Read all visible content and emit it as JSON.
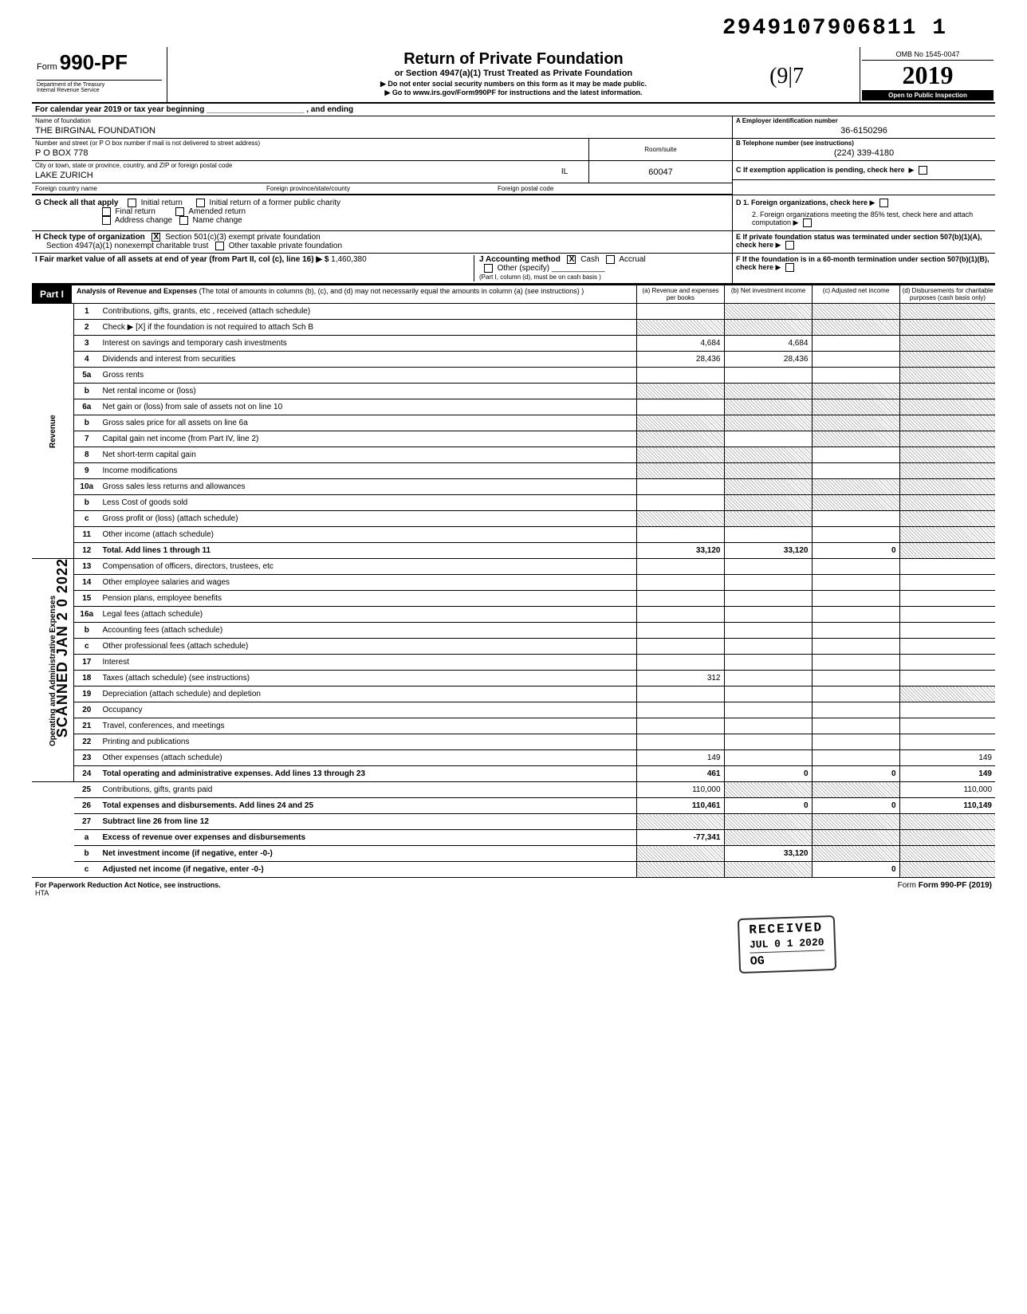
{
  "top_number": "2949107906811 1",
  "handwritten": "(9|7",
  "form": {
    "prefix": "Form",
    "number": "990-PF",
    "dept": "Department of the Treasury",
    "irs": "Internal Revenue Service"
  },
  "title": {
    "main": "Return of Private Foundation",
    "sub": "or Section 4947(a)(1) Trust Treated as Private Foundation",
    "line1": "Do not enter social security numbers on this form as it may be made public.",
    "line2": "Go to www.irs.gov/Form990PF for instructions and the latest information."
  },
  "yearbox": {
    "omb": "OMB No 1545-0047",
    "year": "2019",
    "inspection": "Open to Public Inspection"
  },
  "calendar": "For calendar year 2019 or tax year beginning ______________________ , and ending",
  "foundation": {
    "name_label": "Name of foundation",
    "name": "THE BIRGINAL FOUNDATION",
    "ein_label": "A  Employer identification number",
    "ein": "36-6150296",
    "addr_label": "Number and street (or P O box number if mail is not delivered to street address)",
    "room_label": "Room/suite",
    "addr": "P O BOX 778",
    "phone_label": "B  Telephone number (see instructions)",
    "phone": "(224) 339-4180",
    "city_label": "City or town, state or province, country, and ZIP or foreign postal code",
    "city": "LAKE ZURICH",
    "state": "IL",
    "zip": "60047",
    "c_label": "C  If exemption application is pending, check here",
    "foreign_country": "Foreign country name",
    "foreign_province": "Foreign province/state/county",
    "foreign_postal": "Foreign postal code"
  },
  "section_g": {
    "label": "G   Check all that apply",
    "initial": "Initial return",
    "final": "Final return",
    "address": "Address change",
    "initial_former": "Initial return of a former public charity",
    "amended": "Amended return",
    "name_change": "Name change",
    "d1": "D  1. Foreign organizations, check here",
    "d2": "2. Foreign organizations meeting the 85% test, check here and attach computation"
  },
  "section_h": {
    "label": "H   Check type of organization",
    "opt1": "Section 501(c)(3) exempt private foundation",
    "opt2": "Section 4947(a)(1) nonexempt charitable trust",
    "opt3": "Other taxable private foundation",
    "e_label": "E  If private foundation status was terminated under section 507(b)(1)(A), check here"
  },
  "section_i": {
    "label": "I     Fair market value of all assets at end of year (from Part II, col (c), line 16) ▶ $",
    "value": "1,460,380",
    "j_label": "J    Accounting method",
    "cash": "Cash",
    "accrual": "Accrual",
    "other": "Other (specify)",
    "note": "(Part I, column (d), must be on cash basis )",
    "f_label": "F  If the foundation is in a 60-month termination under section 507(b)(1)(B), check here"
  },
  "part1": {
    "label": "Part I",
    "title": "Analysis of Revenue and Expenses",
    "note": "(The total of amounts in columns (b), (c), and (d) may not necessarily equal the amounts in column (a) (see instructions) )",
    "col_a": "(a) Revenue and expenses per books",
    "col_b": "(b) Net investment income",
    "col_c": "(c) Adjusted net income",
    "col_d": "(d) Disbursements for charitable purposes (cash basis only)"
  },
  "side_labels": {
    "scanned": "SCANNED JAN 2 0 2022",
    "revenue": "Revenue",
    "expenses": "Operating and Administrative Expenses"
  },
  "rows": [
    {
      "n": "1",
      "desc": "Contributions, gifts, grants, etc , received (attach schedule)",
      "a": "",
      "b_sh": true,
      "c_sh": true,
      "d_sh": true
    },
    {
      "n": "2",
      "desc": "Check ▶ [X] if the foundation is not required to attach Sch B",
      "a_sh": true,
      "b_sh": true,
      "c_sh": true,
      "d_sh": true
    },
    {
      "n": "3",
      "desc": "Interest on savings and temporary cash investments",
      "a": "4,684",
      "b": "4,684",
      "c": "",
      "d_sh": true
    },
    {
      "n": "4",
      "desc": "Dividends and interest from securities",
      "a": "28,436",
      "b": "28,436",
      "c": "",
      "d_sh": true
    },
    {
      "n": "5a",
      "desc": "Gross rents",
      "a": "",
      "b": "",
      "c": "",
      "d_sh": true
    },
    {
      "n": "b",
      "desc": "Net rental income or (loss)",
      "a_sh": true,
      "b_sh": true,
      "c_sh": true,
      "d_sh": true
    },
    {
      "n": "6a",
      "desc": "Net gain or (loss) from sale of assets not on line 10",
      "a": "",
      "b_sh": true,
      "c_sh": true,
      "d_sh": true
    },
    {
      "n": "b",
      "desc": "Gross sales price for all assets on line 6a",
      "a_sh": true,
      "b_sh": true,
      "c_sh": true,
      "d_sh": true
    },
    {
      "n": "7",
      "desc": "Capital gain net income (from Part IV, line 2)",
      "a_sh": true,
      "b": "",
      "c_sh": true,
      "d_sh": true
    },
    {
      "n": "8",
      "desc": "Net short-term capital gain",
      "a_sh": true,
      "b_sh": true,
      "c": "",
      "d_sh": true
    },
    {
      "n": "9",
      "desc": "Income modifications",
      "a_sh": true,
      "b_sh": true,
      "c": "",
      "d_sh": true
    },
    {
      "n": "10a",
      "desc": "Gross sales less returns and allowances",
      "a": "",
      "b_sh": true,
      "c_sh": true,
      "d_sh": true
    },
    {
      "n": "b",
      "desc": "Less Cost of goods sold",
      "a": "",
      "b_sh": true,
      "c_sh": true,
      "d_sh": true
    },
    {
      "n": "c",
      "desc": "Gross profit or (loss) (attach schedule)",
      "a_sh": true,
      "b_sh": true,
      "c": "",
      "d_sh": true
    },
    {
      "n": "11",
      "desc": "Other income (attach schedule)",
      "a": "",
      "b": "",
      "c": "",
      "d_sh": true
    },
    {
      "n": "12",
      "desc": "Total. Add lines 1 through 11",
      "a": "33,120",
      "b": "33,120",
      "c": "0",
      "d_sh": true,
      "bold": true
    },
    {
      "n": "13",
      "desc": "Compensation of officers, directors, trustees, etc",
      "a": "",
      "b": "",
      "c": "",
      "d": ""
    },
    {
      "n": "14",
      "desc": "Other employee salaries and wages",
      "a": "",
      "b": "",
      "c": "",
      "d": ""
    },
    {
      "n": "15",
      "desc": "Pension plans, employee benefits",
      "a": "",
      "b": "",
      "c": "",
      "d": ""
    },
    {
      "n": "16a",
      "desc": "Legal fees (attach schedule)",
      "a": "",
      "b": "",
      "c": "",
      "d": ""
    },
    {
      "n": "b",
      "desc": "Accounting fees (attach schedule)",
      "a": "",
      "b": "",
      "c": "",
      "d": ""
    },
    {
      "n": "c",
      "desc": "Other professional fees (attach schedule)",
      "a": "",
      "b": "",
      "c": "",
      "d": ""
    },
    {
      "n": "17",
      "desc": "Interest",
      "a": "",
      "b": "",
      "c": "",
      "d": ""
    },
    {
      "n": "18",
      "desc": "Taxes (attach schedule) (see instructions)",
      "a": "312",
      "b": "",
      "c": "",
      "d": ""
    },
    {
      "n": "19",
      "desc": "Depreciation (attach schedule) and depletion",
      "a": "",
      "b": "",
      "c": "",
      "d_sh": true
    },
    {
      "n": "20",
      "desc": "Occupancy",
      "a": "",
      "b": "",
      "c": "",
      "d": ""
    },
    {
      "n": "21",
      "desc": "Travel, conferences, and meetings",
      "a": "",
      "b": "",
      "c": "",
      "d": ""
    },
    {
      "n": "22",
      "desc": "Printing and publications",
      "a": "",
      "b": "",
      "c": "",
      "d": ""
    },
    {
      "n": "23",
      "desc": "Other expenses (attach schedule)",
      "a": "149",
      "b": "",
      "c": "",
      "d": "149"
    },
    {
      "n": "24",
      "desc": "Total operating and administrative expenses. Add lines 13 through 23",
      "a": "461",
      "b": "0",
      "c": "0",
      "d": "149",
      "bold": true
    },
    {
      "n": "25",
      "desc": "Contributions, gifts, grants paid",
      "a": "110,000",
      "b_sh": true,
      "c_sh": true,
      "d": "110,000"
    },
    {
      "n": "26",
      "desc": "Total expenses and disbursements. Add lines 24 and 25",
      "a": "110,461",
      "b": "0",
      "c": "0",
      "d": "110,149",
      "bold": true
    },
    {
      "n": "27",
      "desc": "Subtract line 26 from line 12",
      "a_sh": true,
      "b_sh": true,
      "c_sh": true,
      "d_sh": true,
      "bold": true
    },
    {
      "n": "a",
      "desc": "Excess of revenue over expenses and disbursements",
      "a": "-77,341",
      "b_sh": true,
      "c_sh": true,
      "d_sh": true,
      "bold": true
    },
    {
      "n": "b",
      "desc": "Net investment income (if negative, enter -0-)",
      "a_sh": true,
      "b": "33,120",
      "c_sh": true,
      "d_sh": true,
      "bold": true
    },
    {
      "n": "c",
      "desc": "Adjusted net income (if negative, enter -0-)",
      "a_sh": true,
      "b_sh": true,
      "c": "0",
      "d_sh": true,
      "bold": true
    }
  ],
  "received": {
    "label": "RECEIVED",
    "date": "JUL 0 1 2020",
    "og": "OG"
  },
  "footer": {
    "left": "For Paperwork Reduction Act Notice, see instructions.",
    "hta": "HTA",
    "right": "Form 990-PF (2019)"
  },
  "colors": {
    "black": "#000000",
    "white": "#ffffff",
    "shade": "#bbbbbb"
  }
}
